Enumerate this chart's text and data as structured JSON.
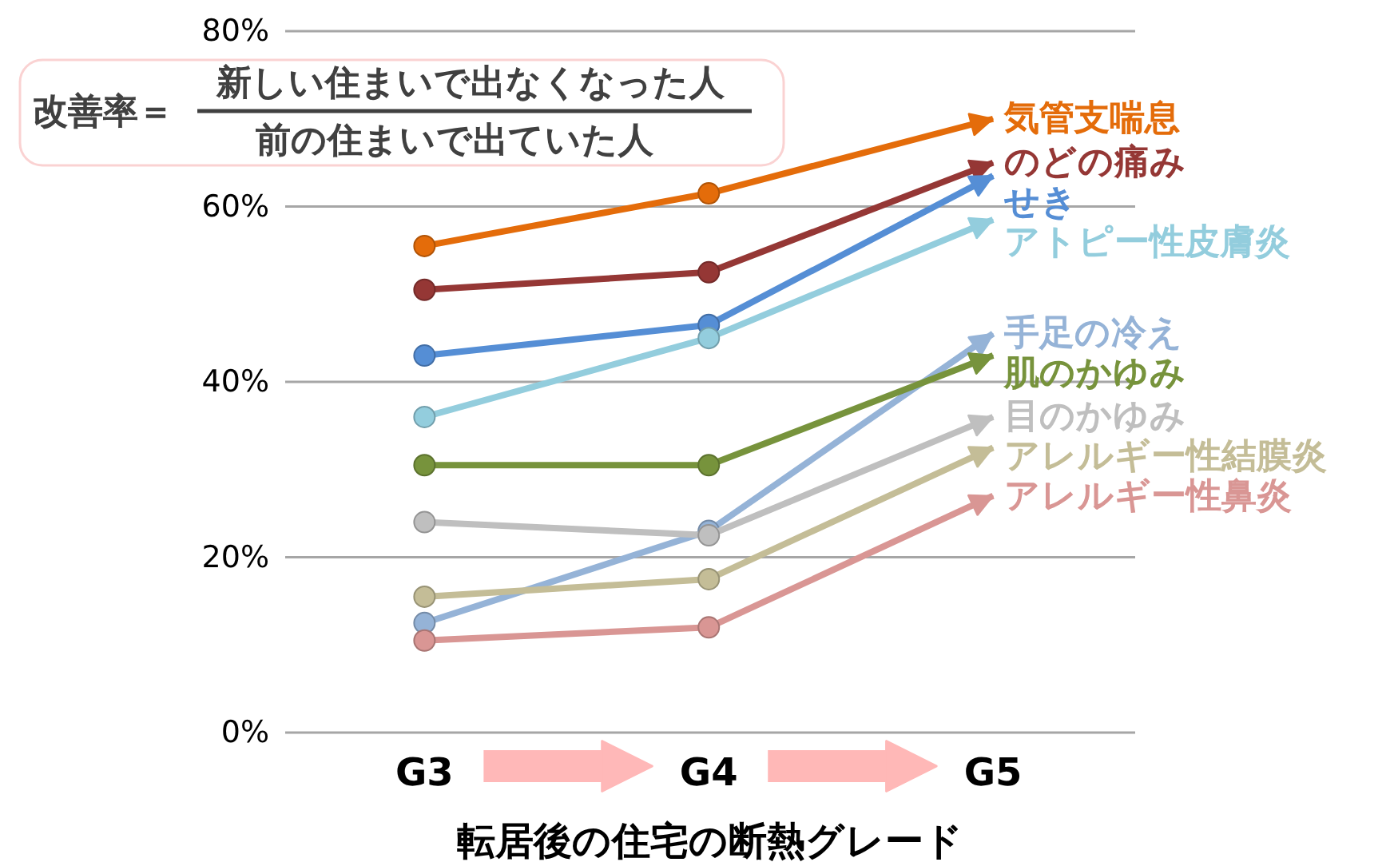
{
  "chart_data": {
    "type": "line",
    "xlabel": "転居後の住宅の断熱グレード",
    "categories": [
      "G3",
      "G4",
      "G5"
    ],
    "ylim": [
      0,
      80
    ],
    "yticks": [
      {
        "value": 0,
        "label": "0%"
      },
      {
        "value": 20,
        "label": "20%"
      },
      {
        "value": 40,
        "label": "40%"
      },
      {
        "value": 60,
        "label": "60%"
      },
      {
        "value": 80,
        "label": "80%"
      }
    ],
    "grid": "y",
    "marker": "circle",
    "line_style": "solid",
    "legend": "right",
    "annotations": [
      "改善率＝",
      "新しい住まいで出なくなった人",
      "前の住まいで出ていた人"
    ],
    "series": [
      {
        "name": "気管支喘息",
        "color": "#e46c0a",
        "values": [
          55.5,
          61.5,
          70
        ]
      },
      {
        "name": "のどの痛み",
        "color": "#953735",
        "values": [
          50.5,
          52.5,
          65
        ]
      },
      {
        "name": "せき",
        "color": "#558ed5",
        "values": [
          43,
          46.5,
          63.5
        ]
      },
      {
        "name": "アトピー性皮膚炎",
        "color": "#93cddd",
        "values": [
          36,
          45,
          58.5
        ]
      },
      {
        "name": "手足の冷え",
        "color": "#95b3d7",
        "values": [
          12.5,
          23,
          45.5
        ]
      },
      {
        "name": "肌のかゆみ",
        "color": "#77933c",
        "values": [
          30.5,
          30.5,
          43
        ]
      },
      {
        "name": "目のかゆみ",
        "color": "#bfbfbf",
        "values": [
          24,
          22.5,
          36
        ]
      },
      {
        "name": "アレルギー性結膜炎",
        "color": "#c4bd97",
        "values": [
          15.5,
          17.5,
          32.5
        ]
      },
      {
        "name": "アレルギー性鼻炎",
        "color": "#d99694",
        "values": [
          10.5,
          12,
          27
        ]
      }
    ]
  }
}
